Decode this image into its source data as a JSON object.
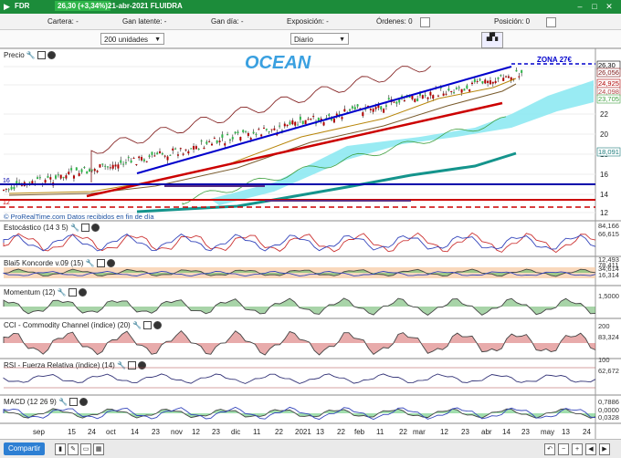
{
  "titlebar": {
    "symbol": "FDR",
    "price": "26,30 (+3,34%)",
    "date": "21-abr-2021",
    "name": "FLUIDRA"
  },
  "infobar": {
    "cartera": "Cartera: -",
    "ganancia_latente": "Gan latente: -",
    "ganancia_dia": "Gan día: -",
    "exposicion": "Exposición: -",
    "ordenes": "Órdenes: 0",
    "posicion": "Posición: 0"
  },
  "controls": {
    "units": "200 unidades",
    "period": "Diario"
  },
  "price_pane": {
    "label": "Precio",
    "title": "OCEAN",
    "zone": "ZONA 27€",
    "watermark": "© ProRealTime.com Datos recibidos en fin de día",
    "axis_ticks": [
      "26",
      "24",
      "22",
      "20",
      "18",
      "16",
      "14",
      "12"
    ],
    "badges": [
      {
        "text": "26,30",
        "color": "#000000"
      },
      {
        "text": "26,056",
        "color": "#7a1010"
      },
      {
        "text": "24,925",
        "color": "#b00000"
      },
      {
        "text": "24,098",
        "color": "#b04040"
      },
      {
        "text": "23,705",
        "color": "#3fa03f"
      },
      {
        "text": "18,091",
        "color": "#1a7a7a"
      }
    ],
    "left_marks": [
      "16",
      "12"
    ]
  },
  "indicators": [
    {
      "label": "Estocástico (14 3 5)",
      "values": [
        "84,166",
        "66,615"
      ]
    },
    {
      "label": "Blai5 Koncorde v.09 (15)",
      "values": [
        "12,493",
        "78,411",
        "34,614",
        "16,314"
      ]
    },
    {
      "label": "Momentum (12)",
      "values": [
        "1,5000"
      ]
    },
    {
      "label": "CCI - Commodity Channel (índice) (20)",
      "values": [
        "200",
        "83,324"
      ]
    },
    {
      "label": "RSI - Fuerza Relativa (índice) (14)",
      "values": [
        "100",
        "62,672"
      ]
    },
    {
      "label": "MACD (12 26 9)",
      "values": [
        "0,7886",
        "0,0000",
        "0,0328"
      ]
    }
  ],
  "xaxis": [
    "sep",
    "15",
    "24",
    "oct",
    "14",
    "23",
    "nov",
    "12",
    "23",
    "dic",
    "11",
    "22",
    "2021",
    "13",
    "22",
    "feb",
    "11",
    "22",
    "mar",
    "12",
    "23",
    "abr",
    "14",
    "23",
    "may",
    "13",
    "24"
  ],
  "bottombar": {
    "share": "Compartir"
  },
  "colors": {
    "titlebar": "#1c8c3a",
    "channel": "#0000cc",
    "support": "#cc0000",
    "cloud": "#7fe6f0"
  }
}
